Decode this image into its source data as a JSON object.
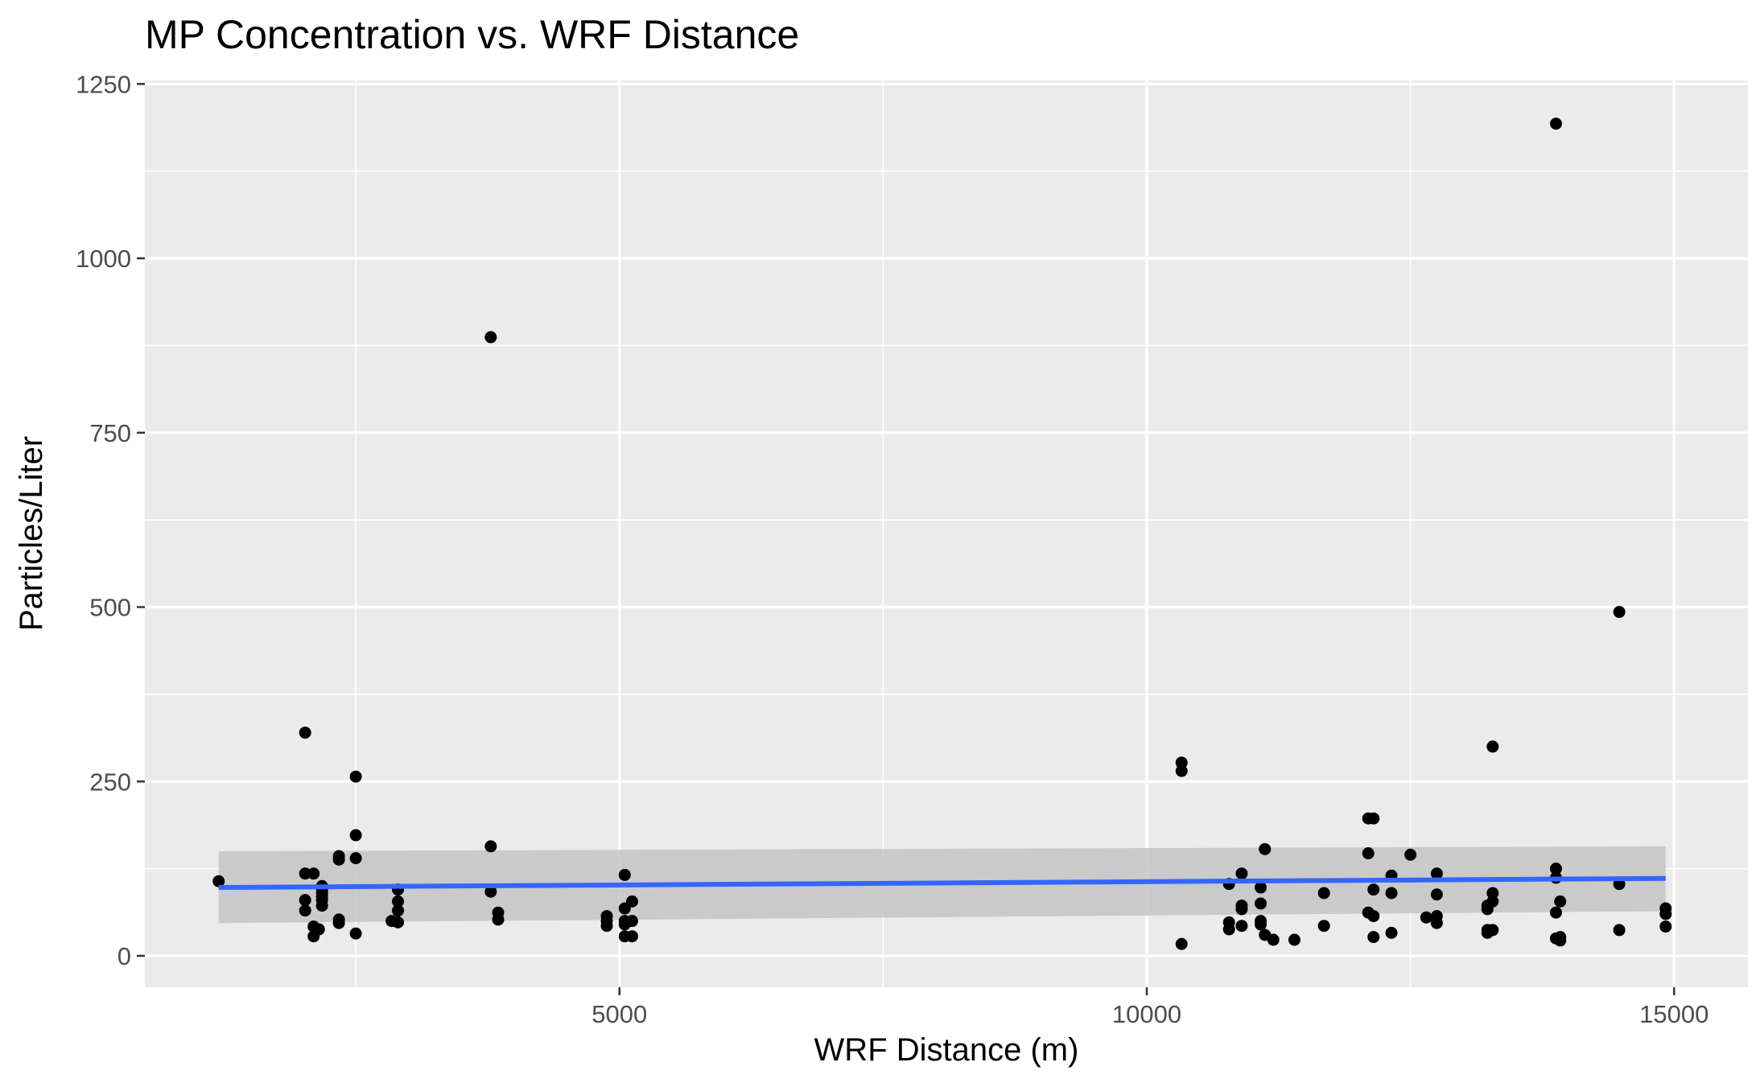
{
  "chart_data": {
    "type": "scatter",
    "title": "MP Concentration vs. WRF Distance",
    "xlabel": "WRF Distance (m)",
    "ylabel": "Particles/Liter",
    "xlim": [
      500,
      15700
    ],
    "ylim": [
      -45,
      1255
    ],
    "x_ticks": [
      5000,
      10000,
      15000
    ],
    "x_tick_labels": [
      "5000",
      "10000",
      "15000"
    ],
    "y_ticks": [
      0,
      250,
      500,
      750,
      1000,
      1250
    ],
    "y_tick_labels": [
      "0",
      "250",
      "500",
      "750",
      "1000",
      "1250"
    ],
    "grid": true,
    "colors": {
      "panel": "#ebebeb",
      "grid_major": "#ffffff",
      "point": "#000000",
      "fit_line": "#3366ff",
      "ribbon": "#c4c4c4"
    },
    "points": [
      [
        1200,
        107
      ],
      [
        2020,
        320
      ],
      [
        2020,
        118
      ],
      [
        2100,
        118
      ],
      [
        2020,
        80
      ],
      [
        2020,
        65
      ],
      [
        2100,
        42
      ],
      [
        2100,
        28
      ],
      [
        2180,
        100
      ],
      [
        2180,
        95
      ],
      [
        2180,
        90
      ],
      [
        2180,
        85
      ],
      [
        2180,
        80
      ],
      [
        2180,
        72
      ],
      [
        2150,
        38
      ],
      [
        2340,
        143
      ],
      [
        2340,
        138
      ],
      [
        2340,
        52
      ],
      [
        2340,
        47
      ],
      [
        2500,
        257
      ],
      [
        2500,
        173
      ],
      [
        2500,
        140
      ],
      [
        2500,
        32
      ],
      [
        2840,
        50
      ],
      [
        2900,
        95
      ],
      [
        2900,
        78
      ],
      [
        2900,
        65
      ],
      [
        2900,
        48
      ],
      [
        3780,
        887
      ],
      [
        3780,
        157
      ],
      [
        3780,
        92
      ],
      [
        3850,
        62
      ],
      [
        3850,
        52
      ],
      [
        4880,
        57
      ],
      [
        4880,
        50
      ],
      [
        4880,
        43
      ],
      [
        5050,
        116
      ],
      [
        5050,
        68
      ],
      [
        5050,
        50
      ],
      [
        5050,
        45
      ],
      [
        5050,
        28
      ],
      [
        5120,
        78
      ],
      [
        5120,
        50
      ],
      [
        5120,
        28
      ],
      [
        10330,
        277
      ],
      [
        10330,
        265
      ],
      [
        10330,
        17
      ],
      [
        10780,
        103
      ],
      [
        10780,
        48
      ],
      [
        10780,
        38
      ],
      [
        10900,
        118
      ],
      [
        10900,
        72
      ],
      [
        10900,
        67
      ],
      [
        10900,
        43
      ],
      [
        11080,
        98
      ],
      [
        11080,
        75
      ],
      [
        11080,
        50
      ],
      [
        11080,
        45
      ],
      [
        11120,
        153
      ],
      [
        11120,
        30
      ],
      [
        11200,
        23
      ],
      [
        11400,
        23
      ],
      [
        11680,
        90
      ],
      [
        11680,
        43
      ],
      [
        12100,
        197
      ],
      [
        12100,
        147
      ],
      [
        12100,
        62
      ],
      [
        12150,
        197
      ],
      [
        12150,
        95
      ],
      [
        12150,
        57
      ],
      [
        12150,
        27
      ],
      [
        12320,
        115
      ],
      [
        12320,
        90
      ],
      [
        12320,
        33
      ],
      [
        12500,
        145
      ],
      [
        12650,
        55
      ],
      [
        12750,
        118
      ],
      [
        12750,
        88
      ],
      [
        12750,
        57
      ],
      [
        12750,
        47
      ],
      [
        13230,
        72
      ],
      [
        13230,
        67
      ],
      [
        13230,
        37
      ],
      [
        13230,
        33
      ],
      [
        13280,
        300
      ],
      [
        13280,
        78
      ],
      [
        13280,
        90
      ],
      [
        13280,
        37
      ],
      [
        13880,
        1193
      ],
      [
        13880,
        125
      ],
      [
        13880,
        112
      ],
      [
        13880,
        62
      ],
      [
        13880,
        25
      ],
      [
        13920,
        78
      ],
      [
        13920,
        27
      ],
      [
        13920,
        22
      ],
      [
        14480,
        493
      ],
      [
        14480,
        103
      ],
      [
        14480,
        37
      ],
      [
        14920,
        68
      ],
      [
        14920,
        60
      ],
      [
        14920,
        42
      ]
    ],
    "fit": {
      "method": "lm",
      "x_range": [
        1200,
        14920
      ],
      "y_start": 98,
      "y_end": 111,
      "se_lower": [
        47,
        64
      ],
      "se_upper": [
        150,
        157
      ]
    }
  }
}
